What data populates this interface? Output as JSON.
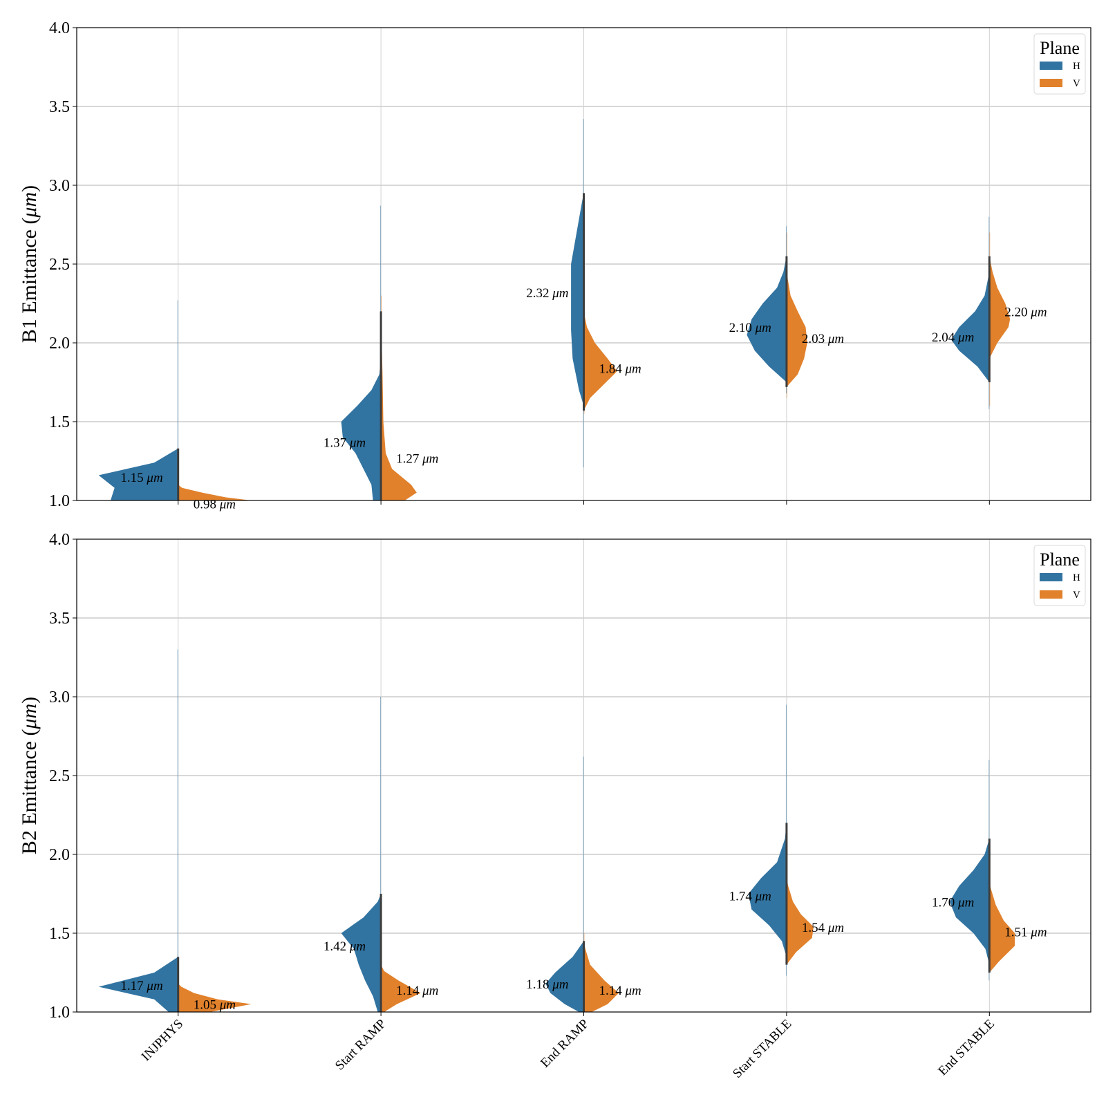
{
  "chart_data": {
    "type": "violin",
    "categories": [
      "INJPHYS",
      "Start RAMP",
      "End RAMP",
      "Start STABLE",
      "End STABLE"
    ],
    "hue": [
      "H",
      "V"
    ],
    "colors": {
      "H": "#3274a1",
      "V": "#e1812c"
    },
    "legend": {
      "title": "Plane",
      "entries": [
        "H",
        "V"
      ],
      "placement": "upper-right"
    },
    "unit_label": "μm",
    "ylim": [
      1.0,
      4.0
    ],
    "yticks": [
      1.0,
      1.5,
      2.0,
      2.5,
      3.0,
      3.5,
      4.0
    ],
    "ytick_labels": [
      "1.0",
      "1.5",
      "2.0",
      "2.5",
      "3.0",
      "3.5",
      "4.0"
    ],
    "grid": true,
    "panels": [
      {
        "ylabel": "B1 Emittance (",
        "ylabel_unit": "μm",
        "ylabel_close": ")",
        "series": [
          {
            "name": "H",
            "medians": [
              1.15,
              1.37,
              2.32,
              2.1,
              2.04
            ],
            "median_labels": [
              "1.15",
              "1.37",
              "2.32",
              "2.10",
              "2.04"
            ],
            "ranges": [
              [
                1.0,
                2.27
              ],
              [
                1.0,
                2.87
              ],
              [
                1.21,
                3.42
              ],
              [
                1.68,
                2.74
              ],
              [
                1.58,
                2.8
              ]
            ],
            "profiles": [
              [
                [
                  1.0,
                  0.85
                ],
                [
                  1.08,
                  0.8
                ],
                [
                  1.16,
                  1.0
                ],
                [
                  1.24,
                  0.3
                ],
                [
                  1.33,
                  0.0
                ]
              ],
              [
                [
                  1.0,
                  0.1
                ],
                [
                  1.1,
                  0.12
                ],
                [
                  1.3,
                  0.32
                ],
                [
                  1.4,
                  0.48
                ],
                [
                  1.5,
                  0.5
                ],
                [
                  1.6,
                  0.3
                ],
                [
                  1.7,
                  0.12
                ],
                [
                  1.8,
                  0.02
                ],
                [
                  1.9,
                  0.0
                ]
              ],
              [
                [
                  1.6,
                  0.0
                ],
                [
                  1.7,
                  0.06
                ],
                [
                  1.8,
                  0.1
                ],
                [
                  1.9,
                  0.14
                ],
                [
                  2.08,
                  0.16
                ],
                [
                  2.5,
                  0.16
                ],
                [
                  2.9,
                  0.02
                ],
                [
                  2.95,
                  0.0
                ]
              ],
              [
                [
                  1.75,
                  0.0
                ],
                [
                  1.85,
                  0.22
                ],
                [
                  1.95,
                  0.4
                ],
                [
                  2.05,
                  0.5
                ],
                [
                  2.15,
                  0.44
                ],
                [
                  2.25,
                  0.3
                ],
                [
                  2.35,
                  0.12
                ],
                [
                  2.45,
                  0.04
                ],
                [
                  2.55,
                  0.0
                ]
              ],
              [
                [
                  1.75,
                  0.0
                ],
                [
                  1.85,
                  0.15
                ],
                [
                  1.95,
                  0.38
                ],
                [
                  2.02,
                  0.48
                ],
                [
                  2.1,
                  0.38
                ],
                [
                  2.2,
                  0.18
                ],
                [
                  2.3,
                  0.06
                ],
                [
                  2.45,
                  0.0
                ]
              ]
            ]
          },
          {
            "name": "V",
            "medians": [
              0.98,
              1.27,
              1.84,
              2.03,
              2.2
            ],
            "median_labels": [
              "0.98",
              "1.27",
              "1.84",
              "2.03",
              "2.20"
            ],
            "ranges": [
              [
                0.9,
                1.2
              ],
              [
                1.0,
                2.3
              ],
              [
                1.55,
                2.7
              ],
              [
                1.65,
                2.7
              ],
              [
                1.6,
                2.7
              ]
            ],
            "profiles": [
              [
                [
                  1.0,
                  0.92
                ],
                [
                  1.02,
                  0.6
                ],
                [
                  1.05,
                  0.3
                ],
                [
                  1.08,
                  0.05
                ],
                [
                  1.1,
                  0.0
                ]
              ],
              [
                [
                  1.0,
                  0.3
                ],
                [
                  1.05,
                  0.45
                ],
                [
                  1.1,
                  0.38
                ],
                [
                  1.2,
                  0.14
                ],
                [
                  1.3,
                  0.06
                ],
                [
                  1.5,
                  0.03
                ],
                [
                  1.8,
                  0.02
                ],
                [
                  2.2,
                  0.0
                ]
              ],
              [
                [
                  1.57,
                  0.0
                ],
                [
                  1.65,
                  0.08
                ],
                [
                  1.75,
                  0.28
                ],
                [
                  1.82,
                  0.42
                ],
                [
                  1.9,
                  0.3
                ],
                [
                  2.0,
                  0.14
                ],
                [
                  2.1,
                  0.04
                ],
                [
                  2.2,
                  0.0
                ]
              ],
              [
                [
                  1.72,
                  0.0
                ],
                [
                  1.8,
                  0.14
                ],
                [
                  1.9,
                  0.22
                ],
                [
                  2.0,
                  0.26
                ],
                [
                  2.1,
                  0.24
                ],
                [
                  2.2,
                  0.14
                ],
                [
                  2.3,
                  0.05
                ],
                [
                  2.45,
                  0.0
                ]
              ],
              [
                [
                  1.9,
                  0.0
                ],
                [
                  2.0,
                  0.1
                ],
                [
                  2.1,
                  0.24
                ],
                [
                  2.15,
                  0.26
                ],
                [
                  2.25,
                  0.2
                ],
                [
                  2.35,
                  0.1
                ],
                [
                  2.45,
                  0.04
                ],
                [
                  2.55,
                  0.0
                ]
              ]
            ]
          }
        ]
      },
      {
        "ylabel": "B2 Emittance (",
        "ylabel_unit": "μm",
        "ylabel_close": ")",
        "series": [
          {
            "name": "H",
            "medians": [
              1.17,
              1.42,
              1.18,
              1.74,
              1.7
            ],
            "median_labels": [
              "1.17",
              "1.42",
              "1.18",
              "1.74",
              "1.70"
            ],
            "ranges": [
              [
                1.0,
                3.3
              ],
              [
                1.0,
                3.0
              ],
              [
                1.0,
                2.62
              ],
              [
                1.23,
                2.95
              ],
              [
                1.2,
                2.6
              ]
            ],
            "profiles": [
              [
                [
                  1.0,
                  0.12
                ],
                [
                  1.08,
                  0.3
                ],
                [
                  1.16,
                  1.0
                ],
                [
                  1.25,
                  0.3
                ],
                [
                  1.35,
                  0.0
                ]
              ],
              [
                [
                  1.0,
                  0.04
                ],
                [
                  1.1,
                  0.1
                ],
                [
                  1.2,
                  0.2
                ],
                [
                  1.3,
                  0.28
                ],
                [
                  1.4,
                  0.34
                ],
                [
                  1.5,
                  0.5
                ],
                [
                  1.6,
                  0.22
                ],
                [
                  1.7,
                  0.04
                ],
                [
                  1.75,
                  0.0
                ]
              ],
              [
                [
                  1.0,
                  0.06
                ],
                [
                  1.05,
                  0.24
                ],
                [
                  1.12,
                  0.42
                ],
                [
                  1.18,
                  0.48
                ],
                [
                  1.25,
                  0.36
                ],
                [
                  1.35,
                  0.14
                ],
                [
                  1.45,
                  0.0
                ]
              ],
              [
                [
                  1.35,
                  0.0
                ],
                [
                  1.45,
                  0.06
                ],
                [
                  1.55,
                  0.22
                ],
                [
                  1.65,
                  0.44
                ],
                [
                  1.75,
                  0.48
                ],
                [
                  1.85,
                  0.32
                ],
                [
                  1.95,
                  0.12
                ],
                [
                  2.1,
                  0.02
                ],
                [
                  2.2,
                  0.0
                ]
              ],
              [
                [
                  1.3,
                  0.0
                ],
                [
                  1.4,
                  0.05
                ],
                [
                  1.5,
                  0.2
                ],
                [
                  1.6,
                  0.42
                ],
                [
                  1.7,
                  0.5
                ],
                [
                  1.8,
                  0.38
                ],
                [
                  1.9,
                  0.2
                ],
                [
                  2.0,
                  0.06
                ],
                [
                  2.1,
                  0.0
                ]
              ]
            ]
          },
          {
            "name": "V",
            "medians": [
              1.05,
              1.14,
              1.14,
              1.54,
              1.51
            ],
            "median_labels": [
              "1.05",
              "1.14",
              "1.14",
              "1.54",
              "1.51"
            ],
            "ranges": [
              [
                1.0,
                1.2
              ],
              [
                1.0,
                1.4
              ],
              [
                1.0,
                1.5
              ],
              [
                1.3,
                1.9
              ],
              [
                1.25,
                1.9
              ]
            ],
            "profiles": [
              [
                [
                  1.0,
                  0.4
                ],
                [
                  1.05,
                  0.92
                ],
                [
                  1.08,
                  0.5
                ],
                [
                  1.12,
                  0.2
                ],
                [
                  1.16,
                  0.04
                ],
                [
                  1.18,
                  0.0
                ]
              ],
              [
                [
                  1.0,
                  0.04
                ],
                [
                  1.05,
                  0.2
                ],
                [
                  1.12,
                  0.5
                ],
                [
                  1.2,
                  0.22
                ],
                [
                  1.26,
                  0.04
                ],
                [
                  1.3,
                  0.0
                ]
              ],
              [
                [
                  1.0,
                  0.1
                ],
                [
                  1.05,
                  0.3
                ],
                [
                  1.12,
                  0.44
                ],
                [
                  1.2,
                  0.26
                ],
                [
                  1.3,
                  0.08
                ],
                [
                  1.4,
                  0.02
                ],
                [
                  1.45,
                  0.0
                ]
              ],
              [
                [
                  1.3,
                  0.0
                ],
                [
                  1.38,
                  0.12
                ],
                [
                  1.47,
                  0.32
                ],
                [
                  1.54,
                  0.34
                ],
                [
                  1.62,
                  0.18
                ],
                [
                  1.7,
                  0.08
                ],
                [
                  1.8,
                  0.02
                ],
                [
                  1.85,
                  0.0
                ]
              ],
              [
                [
                  1.25,
                  0.0
                ],
                [
                  1.32,
                  0.12
                ],
                [
                  1.42,
                  0.32
                ],
                [
                  1.5,
                  0.32
                ],
                [
                  1.58,
                  0.18
                ],
                [
                  1.68,
                  0.08
                ],
                [
                  1.78,
                  0.02
                ],
                [
                  1.82,
                  0.0
                ]
              ]
            ]
          }
        ]
      }
    ]
  }
}
